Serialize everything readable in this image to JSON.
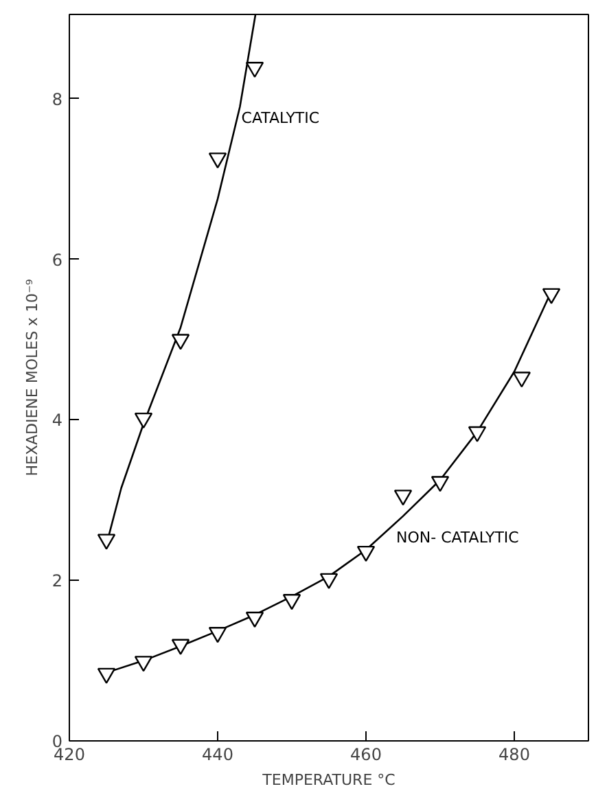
{
  "chart_data": {
    "type": "scatter",
    "xlabel": "TEMPERATURE °C",
    "ylabel": "HEXADIENE MOLES x 10⁻⁹",
    "xlim": [
      420,
      490
    ],
    "ylim": [
      0,
      9.05
    ],
    "xticks": [
      420,
      440,
      460,
      480
    ],
    "yticks": [
      0,
      2,
      4,
      6,
      8
    ],
    "grid": false,
    "marker": "triangle",
    "series": [
      {
        "type": "line",
        "color": "#000000",
        "marker": "none",
        "x": [
          425.3,
          427,
          430,
          435,
          440,
          443,
          445.1
        ],
        "values": [
          2.55,
          3.15,
          3.95,
          5.15,
          6.75,
          7.9,
          9.05
        ]
      },
      {
        "type": "line",
        "color": "#000000",
        "marker": "none",
        "x": [
          425,
          430,
          435,
          440,
          445,
          450,
          455,
          460,
          465,
          470,
          475,
          480,
          485
        ],
        "values": [
          0.85,
          1.0,
          1.18,
          1.37,
          1.57,
          1.8,
          2.05,
          2.38,
          2.8,
          3.25,
          3.85,
          4.6,
          5.6
        ]
      },
      {
        "type": "scatter",
        "color": "#000000",
        "x": [
          425,
          430,
          435,
          440,
          445
        ],
        "values": [
          2.51,
          4.02,
          5.0,
          7.26,
          8.39
        ]
      },
      {
        "type": "scatter",
        "color": "#000000",
        "x": [
          425,
          430,
          435,
          440,
          445,
          450,
          455,
          460,
          465,
          470,
          475,
          481,
          485
        ],
        "values": [
          0.84,
          0.99,
          1.2,
          1.35,
          1.54,
          1.76,
          2.02,
          2.36,
          3.06,
          3.23,
          3.85,
          4.53,
          5.57
        ]
      }
    ],
    "annotations": [
      {
        "text": "CATALYTIC",
        "x": 443.2,
        "y": 7.76
      },
      "NON- CATALYTIC"
    ]
  }
}
